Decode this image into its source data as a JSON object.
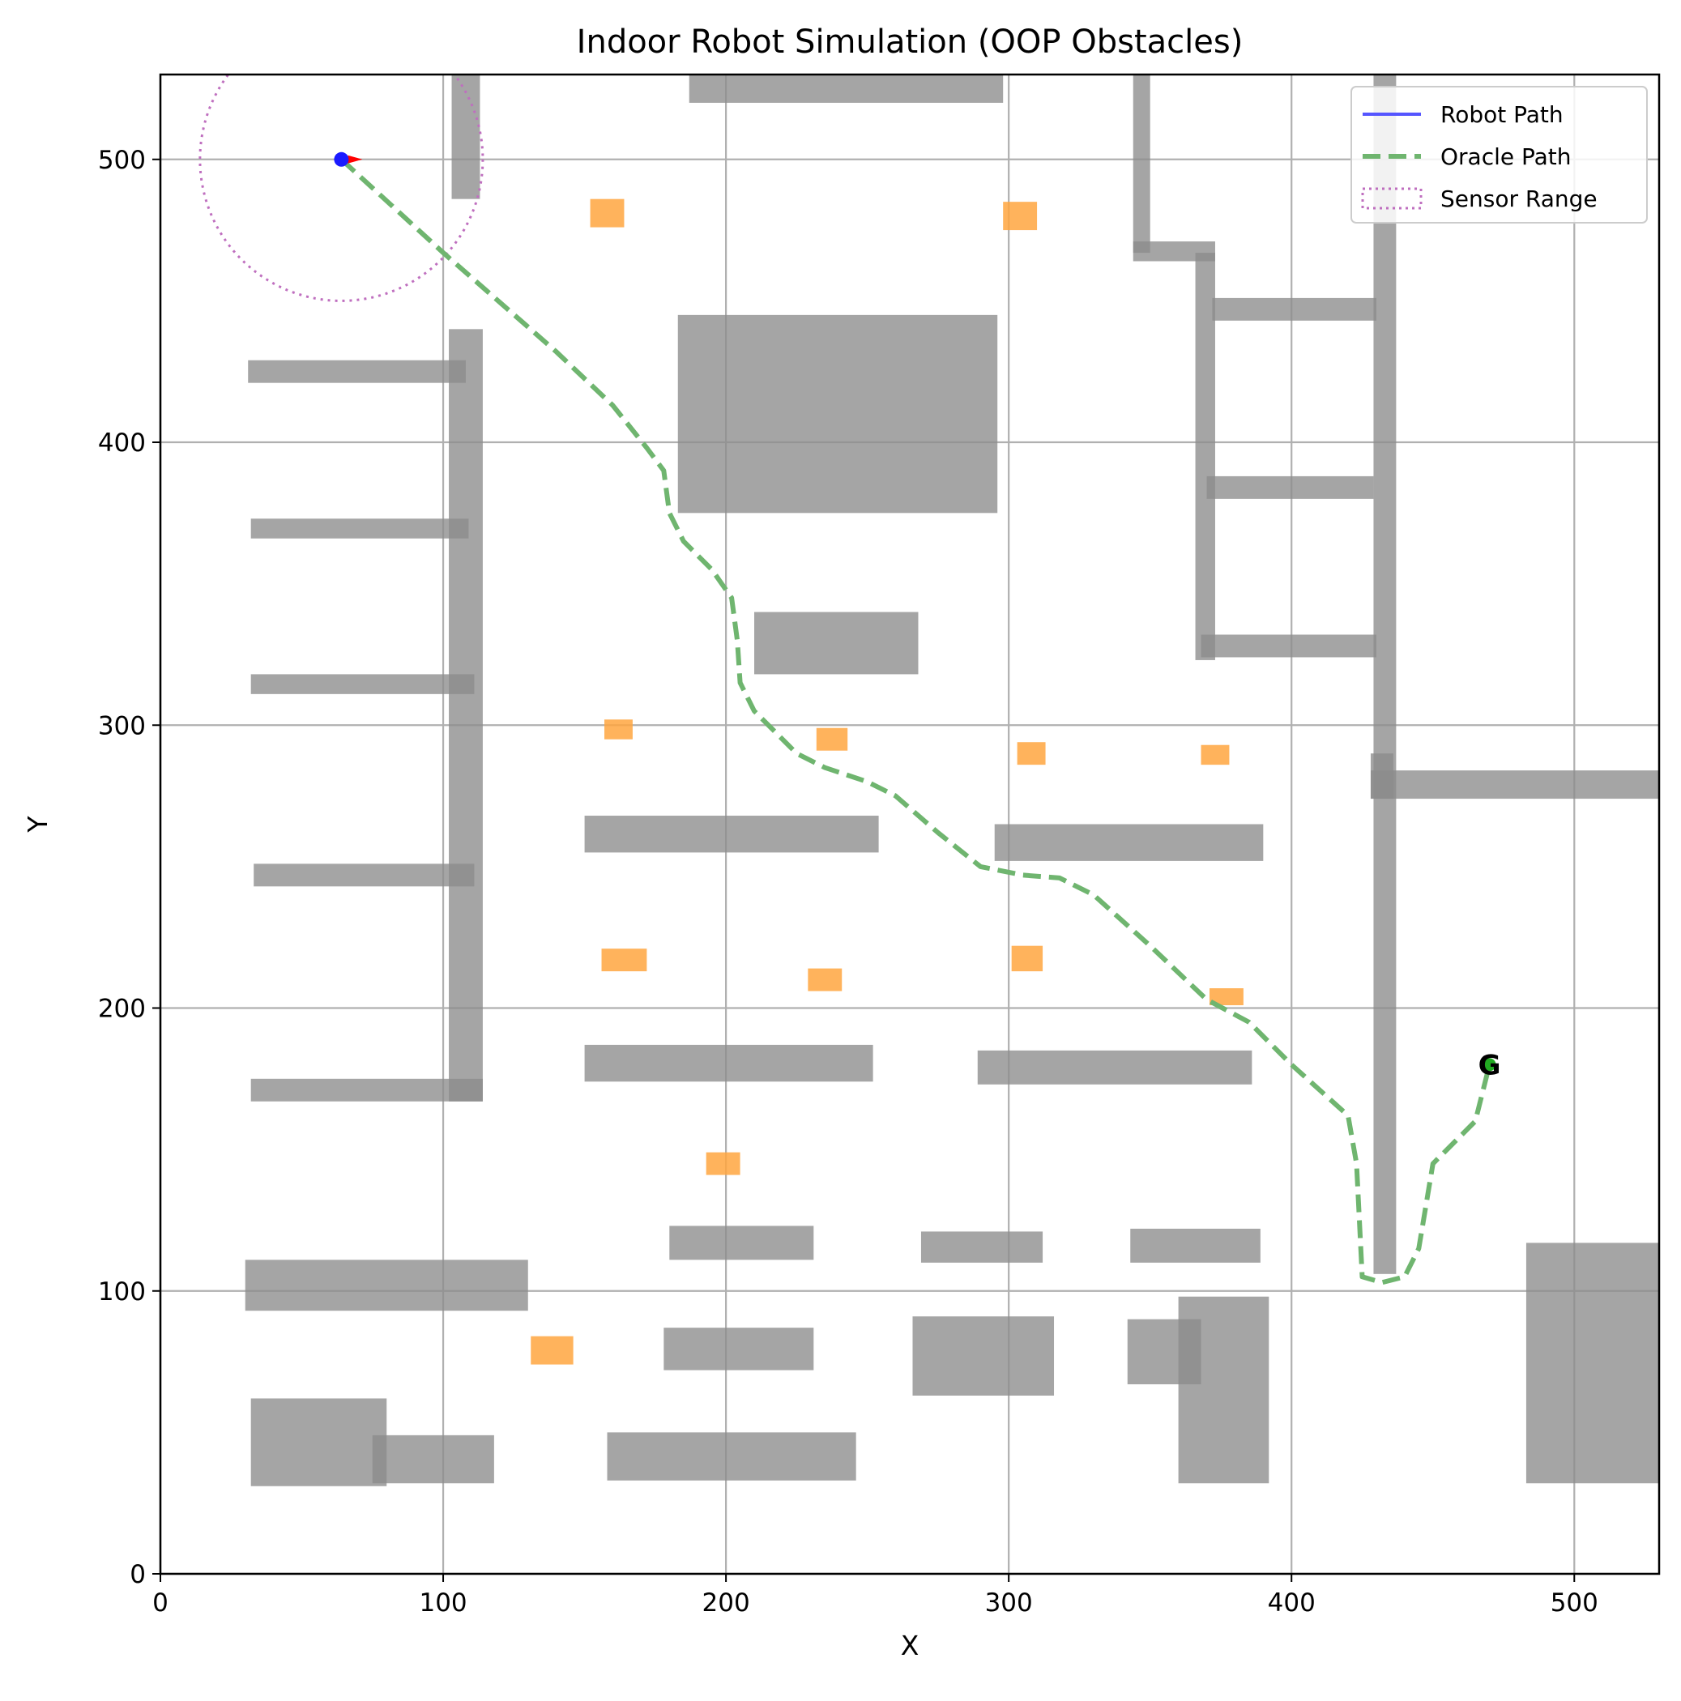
{
  "chart_data": {
    "type": "line",
    "title": "Indoor Robot Simulation (OOP Obstacles)",
    "xlabel": "X",
    "ylabel": "Y",
    "xlim": [
      0,
      530
    ],
    "ylim": [
      0,
      530
    ],
    "xticks": [
      0,
      100,
      200,
      300,
      400,
      500
    ],
    "yticks": [
      0,
      100,
      200,
      300,
      400,
      500
    ],
    "grid": true,
    "legend": {
      "placement": "top-right",
      "entries": [
        {
          "label": "Robot Path",
          "style": "solid",
          "color": "#5555ff"
        },
        {
          "label": "Oracle Path",
          "style": "dashed",
          "color": "#6fb56f"
        },
        {
          "label": "Sensor Range",
          "style": "dotted",
          "color": "#bf6fbf"
        }
      ]
    },
    "colors": {
      "wall": "#8c8c8c",
      "small_obstacle": "#ffa640",
      "oracle_path": "#6fb56f",
      "robot_path": "#5555ff",
      "sensor_range": "#bf6fbf",
      "robot": "#1a1aff",
      "heading": "#ff0000",
      "goal": "#22aa22"
    },
    "robot": {
      "x": 64,
      "y": 500,
      "heading_deg": 0
    },
    "sensor_range_radius": 50,
    "goal": {
      "x": 470,
      "y": 180,
      "label": "G"
    },
    "robot_path": [
      [
        64,
        500
      ]
    ],
    "oracle_path": [
      [
        64,
        500
      ],
      [
        100,
        467
      ],
      [
        140,
        432
      ],
      [
        160,
        413
      ],
      [
        172,
        398
      ],
      [
        178,
        390
      ],
      [
        180,
        375
      ],
      [
        185,
        365
      ],
      [
        195,
        355
      ],
      [
        202,
        345
      ],
      [
        204,
        330
      ],
      [
        205,
        315
      ],
      [
        210,
        305
      ],
      [
        225,
        290
      ],
      [
        235,
        285
      ],
      [
        250,
        280
      ],
      [
        260,
        275
      ],
      [
        275,
        262
      ],
      [
        290,
        250
      ],
      [
        305,
        247
      ],
      [
        318,
        246
      ],
      [
        330,
        240
      ],
      [
        350,
        222
      ],
      [
        370,
        203
      ],
      [
        385,
        195
      ],
      [
        400,
        180
      ],
      [
        420,
        162
      ],
      [
        423,
        145
      ],
      [
        425,
        105
      ],
      [
        432,
        103
      ],
      [
        440,
        105
      ],
      [
        445,
        115
      ],
      [
        450,
        145
      ],
      [
        465,
        160
      ],
      [
        470,
        180
      ]
    ],
    "obstacles": [
      {
        "x0": 187,
        "y0": 520,
        "x1": 298,
        "y1": 530,
        "kind": "wall"
      },
      {
        "x0": 103,
        "y0": 486,
        "x1": 113,
        "y1": 530,
        "kind": "wall"
      },
      {
        "x0": 344,
        "y0": 467,
        "x1": 350,
        "y1": 530,
        "kind": "wall"
      },
      {
        "x0": 344,
        "y0": 464,
        "x1": 373,
        "y1": 471,
        "kind": "wall"
      },
      {
        "x0": 366,
        "y0": 323,
        "x1": 373,
        "y1": 467,
        "kind": "wall"
      },
      {
        "x0": 372,
        "y0": 443,
        "x1": 430,
        "y1": 451,
        "kind": "wall"
      },
      {
        "x0": 370,
        "y0": 380,
        "x1": 429,
        "y1": 388,
        "kind": "wall"
      },
      {
        "x0": 368,
        "y0": 324,
        "x1": 430,
        "y1": 332,
        "kind": "wall"
      },
      {
        "x0": 429,
        "y0": 106,
        "x1": 437,
        "y1": 530,
        "kind": "wall"
      },
      {
        "x0": 428,
        "y0": 274,
        "x1": 530,
        "y1": 284,
        "kind": "wall"
      },
      {
        "x0": 428,
        "y0": 274,
        "x1": 436,
        "y1": 290,
        "kind": "wall"
      },
      {
        "x0": 183,
        "y0": 375,
        "x1": 296,
        "y1": 445,
        "kind": "wall"
      },
      {
        "x0": 210,
        "y0": 318,
        "x1": 268,
        "y1": 340,
        "kind": "wall"
      },
      {
        "x0": 31,
        "y0": 421,
        "x1": 108,
        "y1": 429,
        "kind": "wall"
      },
      {
        "x0": 32,
        "y0": 366,
        "x1": 109,
        "y1": 373,
        "kind": "wall"
      },
      {
        "x0": 32,
        "y0": 311,
        "x1": 111,
        "y1": 318,
        "kind": "wall"
      },
      {
        "x0": 33,
        "y0": 243,
        "x1": 111,
        "y1": 251,
        "kind": "wall"
      },
      {
        "x0": 32,
        "y0": 167,
        "x1": 114,
        "y1": 175,
        "kind": "wall"
      },
      {
        "x0": 102,
        "y0": 167,
        "x1": 114,
        "y1": 440,
        "kind": "wall"
      },
      {
        "x0": 150,
        "y0": 255,
        "x1": 254,
        "y1": 268,
        "kind": "wall"
      },
      {
        "x0": 295,
        "y0": 252,
        "x1": 390,
        "y1": 265,
        "kind": "wall"
      },
      {
        "x0": 150,
        "y0": 174,
        "x1": 252,
        "y1": 187,
        "kind": "wall"
      },
      {
        "x0": 289,
        "y0": 173,
        "x1": 386,
        "y1": 185,
        "kind": "wall"
      },
      {
        "x0": 180,
        "y0": 111,
        "x1": 231,
        "y1": 123,
        "kind": "wall"
      },
      {
        "x0": 269,
        "y0": 110,
        "x1": 312,
        "y1": 121,
        "kind": "wall"
      },
      {
        "x0": 343,
        "y0": 110,
        "x1": 389,
        "y1": 122,
        "kind": "wall"
      },
      {
        "x0": 30,
        "y0": 93,
        "x1": 130,
        "y1": 111,
        "kind": "wall"
      },
      {
        "x0": 178,
        "y0": 72,
        "x1": 231,
        "y1": 87,
        "kind": "wall"
      },
      {
        "x0": 266,
        "y0": 63,
        "x1": 316,
        "y1": 91,
        "kind": "wall"
      },
      {
        "x0": 342,
        "y0": 67,
        "x1": 368,
        "y1": 90,
        "kind": "wall"
      },
      {
        "x0": 360,
        "y0": 32,
        "x1": 392,
        "y1": 98,
        "kind": "wall"
      },
      {
        "x0": 483,
        "y0": 32,
        "x1": 530,
        "y1": 117,
        "kind": "wall"
      },
      {
        "x0": 32,
        "y0": 31,
        "x1": 80,
        "y1": 62,
        "kind": "wall"
      },
      {
        "x0": 75,
        "y0": 32,
        "x1": 118,
        "y1": 49,
        "kind": "wall"
      },
      {
        "x0": 158,
        "y0": 33,
        "x1": 246,
        "y1": 50,
        "kind": "wall"
      },
      {
        "x0": 152,
        "y0": 476,
        "x1": 164,
        "y1": 486,
        "kind": "small"
      },
      {
        "x0": 298,
        "y0": 475,
        "x1": 310,
        "y1": 485,
        "kind": "small"
      },
      {
        "x0": 157,
        "y0": 295,
        "x1": 167,
        "y1": 302,
        "kind": "small"
      },
      {
        "x0": 232,
        "y0": 291,
        "x1": 243,
        "y1": 299,
        "kind": "small"
      },
      {
        "x0": 303,
        "y0": 286,
        "x1": 313,
        "y1": 294,
        "kind": "small"
      },
      {
        "x0": 368,
        "y0": 286,
        "x1": 378,
        "y1": 293,
        "kind": "small"
      },
      {
        "x0": 156,
        "y0": 213,
        "x1": 172,
        "y1": 221,
        "kind": "small"
      },
      {
        "x0": 229,
        "y0": 206,
        "x1": 241,
        "y1": 214,
        "kind": "small"
      },
      {
        "x0": 301,
        "y0": 213,
        "x1": 312,
        "y1": 222,
        "kind": "small"
      },
      {
        "x0": 371,
        "y0": 201,
        "x1": 383,
        "y1": 207,
        "kind": "small"
      },
      {
        "x0": 193,
        "y0": 141,
        "x1": 205,
        "y1": 149,
        "kind": "small"
      },
      {
        "x0": 131,
        "y0": 74,
        "x1": 146,
        "y1": 84,
        "kind": "small"
      }
    ]
  }
}
